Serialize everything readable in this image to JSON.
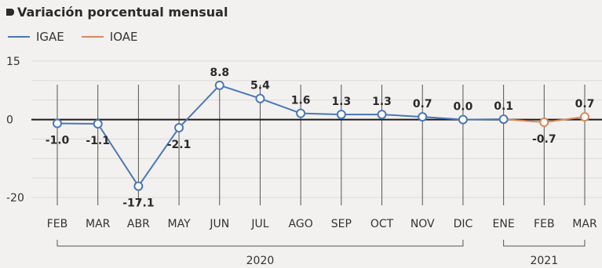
{
  "chart_data": {
    "type": "line",
    "title": "Variación porcentual mensual",
    "categories": [
      "FEB",
      "MAR",
      "ABR",
      "MAY",
      "JUN",
      "JUL",
      "AGO",
      "SEP",
      "OCT",
      "NOV",
      "DIC",
      "ENE",
      "FEB",
      "MAR"
    ],
    "series": [
      {
        "name": "IGAE",
        "color": "#4a78b8",
        "values": [
          -1.0,
          -1.1,
          -17.1,
          -2.1,
          8.8,
          5.4,
          1.6,
          1.3,
          1.3,
          0.7,
          0.0,
          0.1,
          null,
          null
        ]
      },
      {
        "name": "IOAE",
        "color": "#d9895a",
        "values": [
          null,
          null,
          null,
          null,
          null,
          null,
          null,
          null,
          null,
          null,
          null,
          0.1,
          -0.7,
          0.7
        ]
      }
    ],
    "data_labels": [
      "-1.0",
      "-1.1",
      "-17.1",
      "-2.1",
      "8.8",
      "5.4",
      "1.6",
      "1.3",
      "1.3",
      "0.7",
      "0.0",
      "0.1",
      "-0.7",
      "0.7"
    ],
    "yticks": [
      15,
      0,
      -20
    ],
    "ylim": [
      -20,
      15
    ],
    "groups": [
      {
        "label": "2020",
        "from": 0,
        "to": 10
      },
      {
        "label": "2021",
        "from": 11,
        "to": 13
      }
    ],
    "grid": true
  }
}
